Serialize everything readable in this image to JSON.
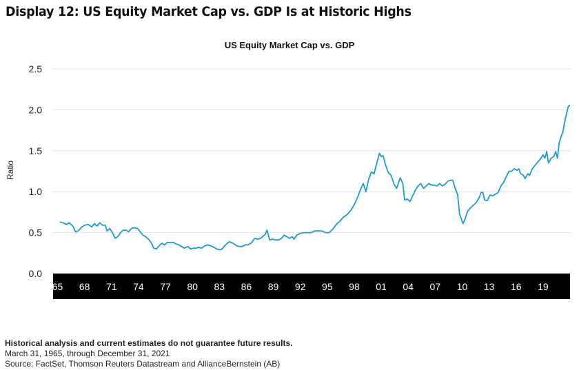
{
  "display_title": "Display 12: US Equity Market Cap vs. GDP Is at Historic Highs",
  "footer": {
    "note": "Historical analysis and current estimates do not guarantee future results.",
    "period": "March 31, 1965, through December 31, 2021",
    "source": "Source: FactSet, Thomson Reuters Datastream and AllianceBernstein (AB)"
  },
  "colors": {
    "line": "#1a9ad6",
    "axis_band": "#000000",
    "grid": "#e3e3e3"
  },
  "chart_data": {
    "type": "line",
    "title": "US Equity Market Cap vs. GDP",
    "xlabel": "",
    "ylabel": "Ratio",
    "ylim": [
      0,
      2.5
    ],
    "yticks": [
      "0.0",
      "0.5",
      "1.0",
      "1.5",
      "2.0",
      "2.5"
    ],
    "xlim": [
      1964.5,
      2022
    ],
    "xticks": [
      {
        "x": 1965,
        "label": "65"
      },
      {
        "x": 1968,
        "label": "68"
      },
      {
        "x": 1971,
        "label": "71"
      },
      {
        "x": 1974,
        "label": "74"
      },
      {
        "x": 1977,
        "label": "77"
      },
      {
        "x": 1980,
        "label": "80"
      },
      {
        "x": 1983,
        "label": "83"
      },
      {
        "x": 1986,
        "label": "86"
      },
      {
        "x": 1989,
        "label": "89"
      },
      {
        "x": 1992,
        "label": "92"
      },
      {
        "x": 1995,
        "label": "95"
      },
      {
        "x": 1998,
        "label": "98"
      },
      {
        "x": 2001,
        "label": "01"
      },
      {
        "x": 2004,
        "label": "04"
      },
      {
        "x": 2007,
        "label": "07"
      },
      {
        "x": 2010,
        "label": "10"
      },
      {
        "x": 2013,
        "label": "13"
      },
      {
        "x": 2016,
        "label": "16"
      },
      {
        "x": 2019,
        "label": "19"
      }
    ],
    "grid": true,
    "series": [
      {
        "points": [
          [
            1965.25,
            0.63
          ],
          [
            1965.6,
            0.62
          ],
          [
            1966.0,
            0.6
          ],
          [
            1966.3,
            0.62
          ],
          [
            1966.7,
            0.58
          ],
          [
            1967.0,
            0.51
          ],
          [
            1967.3,
            0.52
          ],
          [
            1967.7,
            0.57
          ],
          [
            1968.0,
            0.59
          ],
          [
            1968.4,
            0.6
          ],
          [
            1968.8,
            0.57
          ],
          [
            1969.1,
            0.61
          ],
          [
            1969.4,
            0.58
          ],
          [
            1969.7,
            0.62
          ],
          [
            1970.0,
            0.59
          ],
          [
            1970.3,
            0.59
          ],
          [
            1970.5,
            0.52
          ],
          [
            1970.8,
            0.55
          ],
          [
            1971.1,
            0.5
          ],
          [
            1971.4,
            0.43
          ],
          [
            1971.7,
            0.45
          ],
          [
            1972.0,
            0.5
          ],
          [
            1972.3,
            0.53
          ],
          [
            1972.6,
            0.53
          ],
          [
            1972.9,
            0.51
          ],
          [
            1973.2,
            0.55
          ],
          [
            1973.5,
            0.56
          ],
          [
            1973.9,
            0.55
          ],
          [
            1974.2,
            0.51
          ],
          [
            1974.5,
            0.47
          ],
          [
            1974.8,
            0.45
          ],
          [
            1975.1,
            0.42
          ],
          [
            1975.4,
            0.38
          ],
          [
            1975.7,
            0.31
          ],
          [
            1976.0,
            0.3
          ],
          [
            1976.3,
            0.34
          ],
          [
            1976.6,
            0.37
          ],
          [
            1976.9,
            0.35
          ],
          [
            1977.2,
            0.38
          ],
          [
            1977.5,
            0.38
          ],
          [
            1977.9,
            0.38
          ],
          [
            1978.2,
            0.36
          ],
          [
            1978.5,
            0.35
          ],
          [
            1978.8,
            0.33
          ],
          [
            1979.1,
            0.31
          ],
          [
            1979.5,
            0.33
          ],
          [
            1979.8,
            0.3
          ],
          [
            1980.1,
            0.31
          ],
          [
            1980.4,
            0.31
          ],
          [
            1980.7,
            0.32
          ],
          [
            1981.0,
            0.31
          ],
          [
            1981.4,
            0.34
          ],
          [
            1981.7,
            0.35
          ],
          [
            1982.0,
            0.34
          ],
          [
            1982.4,
            0.32
          ],
          [
            1982.7,
            0.3
          ],
          [
            1983.0,
            0.29
          ],
          [
            1983.3,
            0.3
          ],
          [
            1983.6,
            0.34
          ],
          [
            1983.9,
            0.37
          ],
          [
            1984.1,
            0.39
          ],
          [
            1984.5,
            0.37
          ],
          [
            1984.9,
            0.34
          ],
          [
            1985.2,
            0.33
          ],
          [
            1985.5,
            0.33
          ],
          [
            1985.9,
            0.35
          ],
          [
            1986.2,
            0.35
          ],
          [
            1986.6,
            0.38
          ],
          [
            1986.9,
            0.43
          ],
          [
            1987.3,
            0.42
          ],
          [
            1987.6,
            0.43
          ],
          [
            1987.8,
            0.45
          ],
          [
            1988.1,
            0.48
          ],
          [
            1988.3,
            0.53
          ],
          [
            1988.6,
            0.41
          ],
          [
            1988.9,
            0.42
          ],
          [
            1989.2,
            0.41
          ],
          [
            1989.6,
            0.41
          ],
          [
            1989.9,
            0.43
          ],
          [
            1990.2,
            0.47
          ],
          [
            1990.5,
            0.45
          ],
          [
            1990.8,
            0.43
          ],
          [
            1991.1,
            0.45
          ],
          [
            1991.3,
            0.42
          ],
          [
            1991.6,
            0.47
          ],
          [
            1992.0,
            0.49
          ],
          [
            1992.4,
            0.5
          ],
          [
            1992.8,
            0.5
          ],
          [
            1993.2,
            0.5
          ],
          [
            1993.6,
            0.52
          ],
          [
            1994.0,
            0.52
          ],
          [
            1994.4,
            0.52
          ],
          [
            1994.8,
            0.5
          ],
          [
            1995.2,
            0.5
          ],
          [
            1995.6,
            0.54
          ],
          [
            1996.0,
            0.6
          ],
          [
            1996.4,
            0.64
          ],
          [
            1996.8,
            0.69
          ],
          [
            1997.2,
            0.72
          ],
          [
            1997.6,
            0.77
          ],
          [
            1998.0,
            0.84
          ],
          [
            1998.4,
            0.94
          ],
          [
            1998.7,
            1.03
          ],
          [
            1999.0,
            1.1
          ],
          [
            1999.3,
            1.0
          ],
          [
            1999.6,
            1.15
          ],
          [
            1999.9,
            1.24
          ],
          [
            2000.2,
            1.22
          ],
          [
            2000.5,
            1.35
          ],
          [
            2000.8,
            1.47
          ],
          [
            2001.0,
            1.43
          ],
          [
            2001.2,
            1.44
          ],
          [
            2001.5,
            1.32
          ],
          [
            2001.8,
            1.23
          ],
          [
            2002.1,
            1.2
          ],
          [
            2002.4,
            1.1
          ],
          [
            2002.7,
            1.04
          ],
          [
            2002.9,
            1.1
          ],
          [
            2003.1,
            1.17
          ],
          [
            2003.4,
            1.1
          ],
          [
            2003.6,
            0.9
          ],
          [
            2003.9,
            0.91
          ],
          [
            2004.2,
            0.88
          ],
          [
            2004.5,
            0.95
          ],
          [
            2004.8,
            1.02
          ],
          [
            2005.1,
            1.07
          ],
          [
            2005.4,
            1.1
          ],
          [
            2005.7,
            1.04
          ],
          [
            2006.0,
            1.07
          ],
          [
            2006.3,
            1.1
          ],
          [
            2006.6,
            1.08
          ],
          [
            2006.9,
            1.08
          ],
          [
            2007.2,
            1.07
          ],
          [
            2007.5,
            1.1
          ],
          [
            2007.8,
            1.07
          ],
          [
            2008.1,
            1.09
          ],
          [
            2008.4,
            1.13
          ],
          [
            2008.7,
            1.14
          ],
          [
            2008.95,
            1.14
          ],
          [
            2009.2,
            1.05
          ],
          [
            2009.5,
            0.96
          ],
          [
            2009.7,
            0.73
          ],
          [
            2009.9,
            0.67
          ],
          [
            2010.1,
            0.61
          ],
          [
            2010.3,
            0.66
          ],
          [
            2010.6,
            0.76
          ],
          [
            2010.9,
            0.8
          ],
          [
            2011.2,
            0.83
          ],
          [
            2011.6,
            0.87
          ],
          [
            2011.9,
            0.93
          ],
          [
            2012.1,
            0.99
          ],
          [
            2012.3,
            0.99
          ],
          [
            2012.5,
            0.9
          ],
          [
            2012.8,
            0.89
          ],
          [
            2013.1,
            0.96
          ],
          [
            2013.4,
            0.95
          ],
          [
            2013.7,
            0.97
          ],
          [
            2014.0,
            0.99
          ],
          [
            2014.3,
            1.07
          ],
          [
            2014.6,
            1.11
          ],
          [
            2014.9,
            1.18
          ],
          [
            2015.2,
            1.25
          ],
          [
            2015.5,
            1.25
          ],
          [
            2015.8,
            1.28
          ],
          [
            2016.1,
            1.26
          ],
          [
            2016.3,
            1.28
          ],
          [
            2016.5,
            1.22
          ],
          [
            2016.8,
            1.2
          ],
          [
            2017.0,
            1.16
          ],
          [
            2017.3,
            1.22
          ],
          [
            2017.5,
            1.2
          ],
          [
            2017.8,
            1.28
          ],
          [
            2018.1,
            1.32
          ],
          [
            2018.4,
            1.36
          ],
          [
            2018.7,
            1.4
          ],
          [
            2019.0,
            1.45
          ],
          [
            2019.2,
            1.41
          ],
          [
            2019.4,
            1.49
          ],
          [
            2019.6,
            1.35
          ],
          [
            2019.9,
            1.41
          ],
          [
            2020.2,
            1.43
          ],
          [
            2020.4,
            1.49
          ],
          [
            2020.6,
            1.41
          ],
          [
            2020.8,
            1.6
          ],
          [
            2021.0,
            1.67
          ],
          [
            2021.2,
            1.73
          ],
          [
            2021.4,
            1.85
          ],
          [
            2021.6,
            1.95
          ],
          [
            2021.8,
            2.04
          ],
          [
            2022.0,
            2.06
          ]
        ]
      }
    ]
  }
}
